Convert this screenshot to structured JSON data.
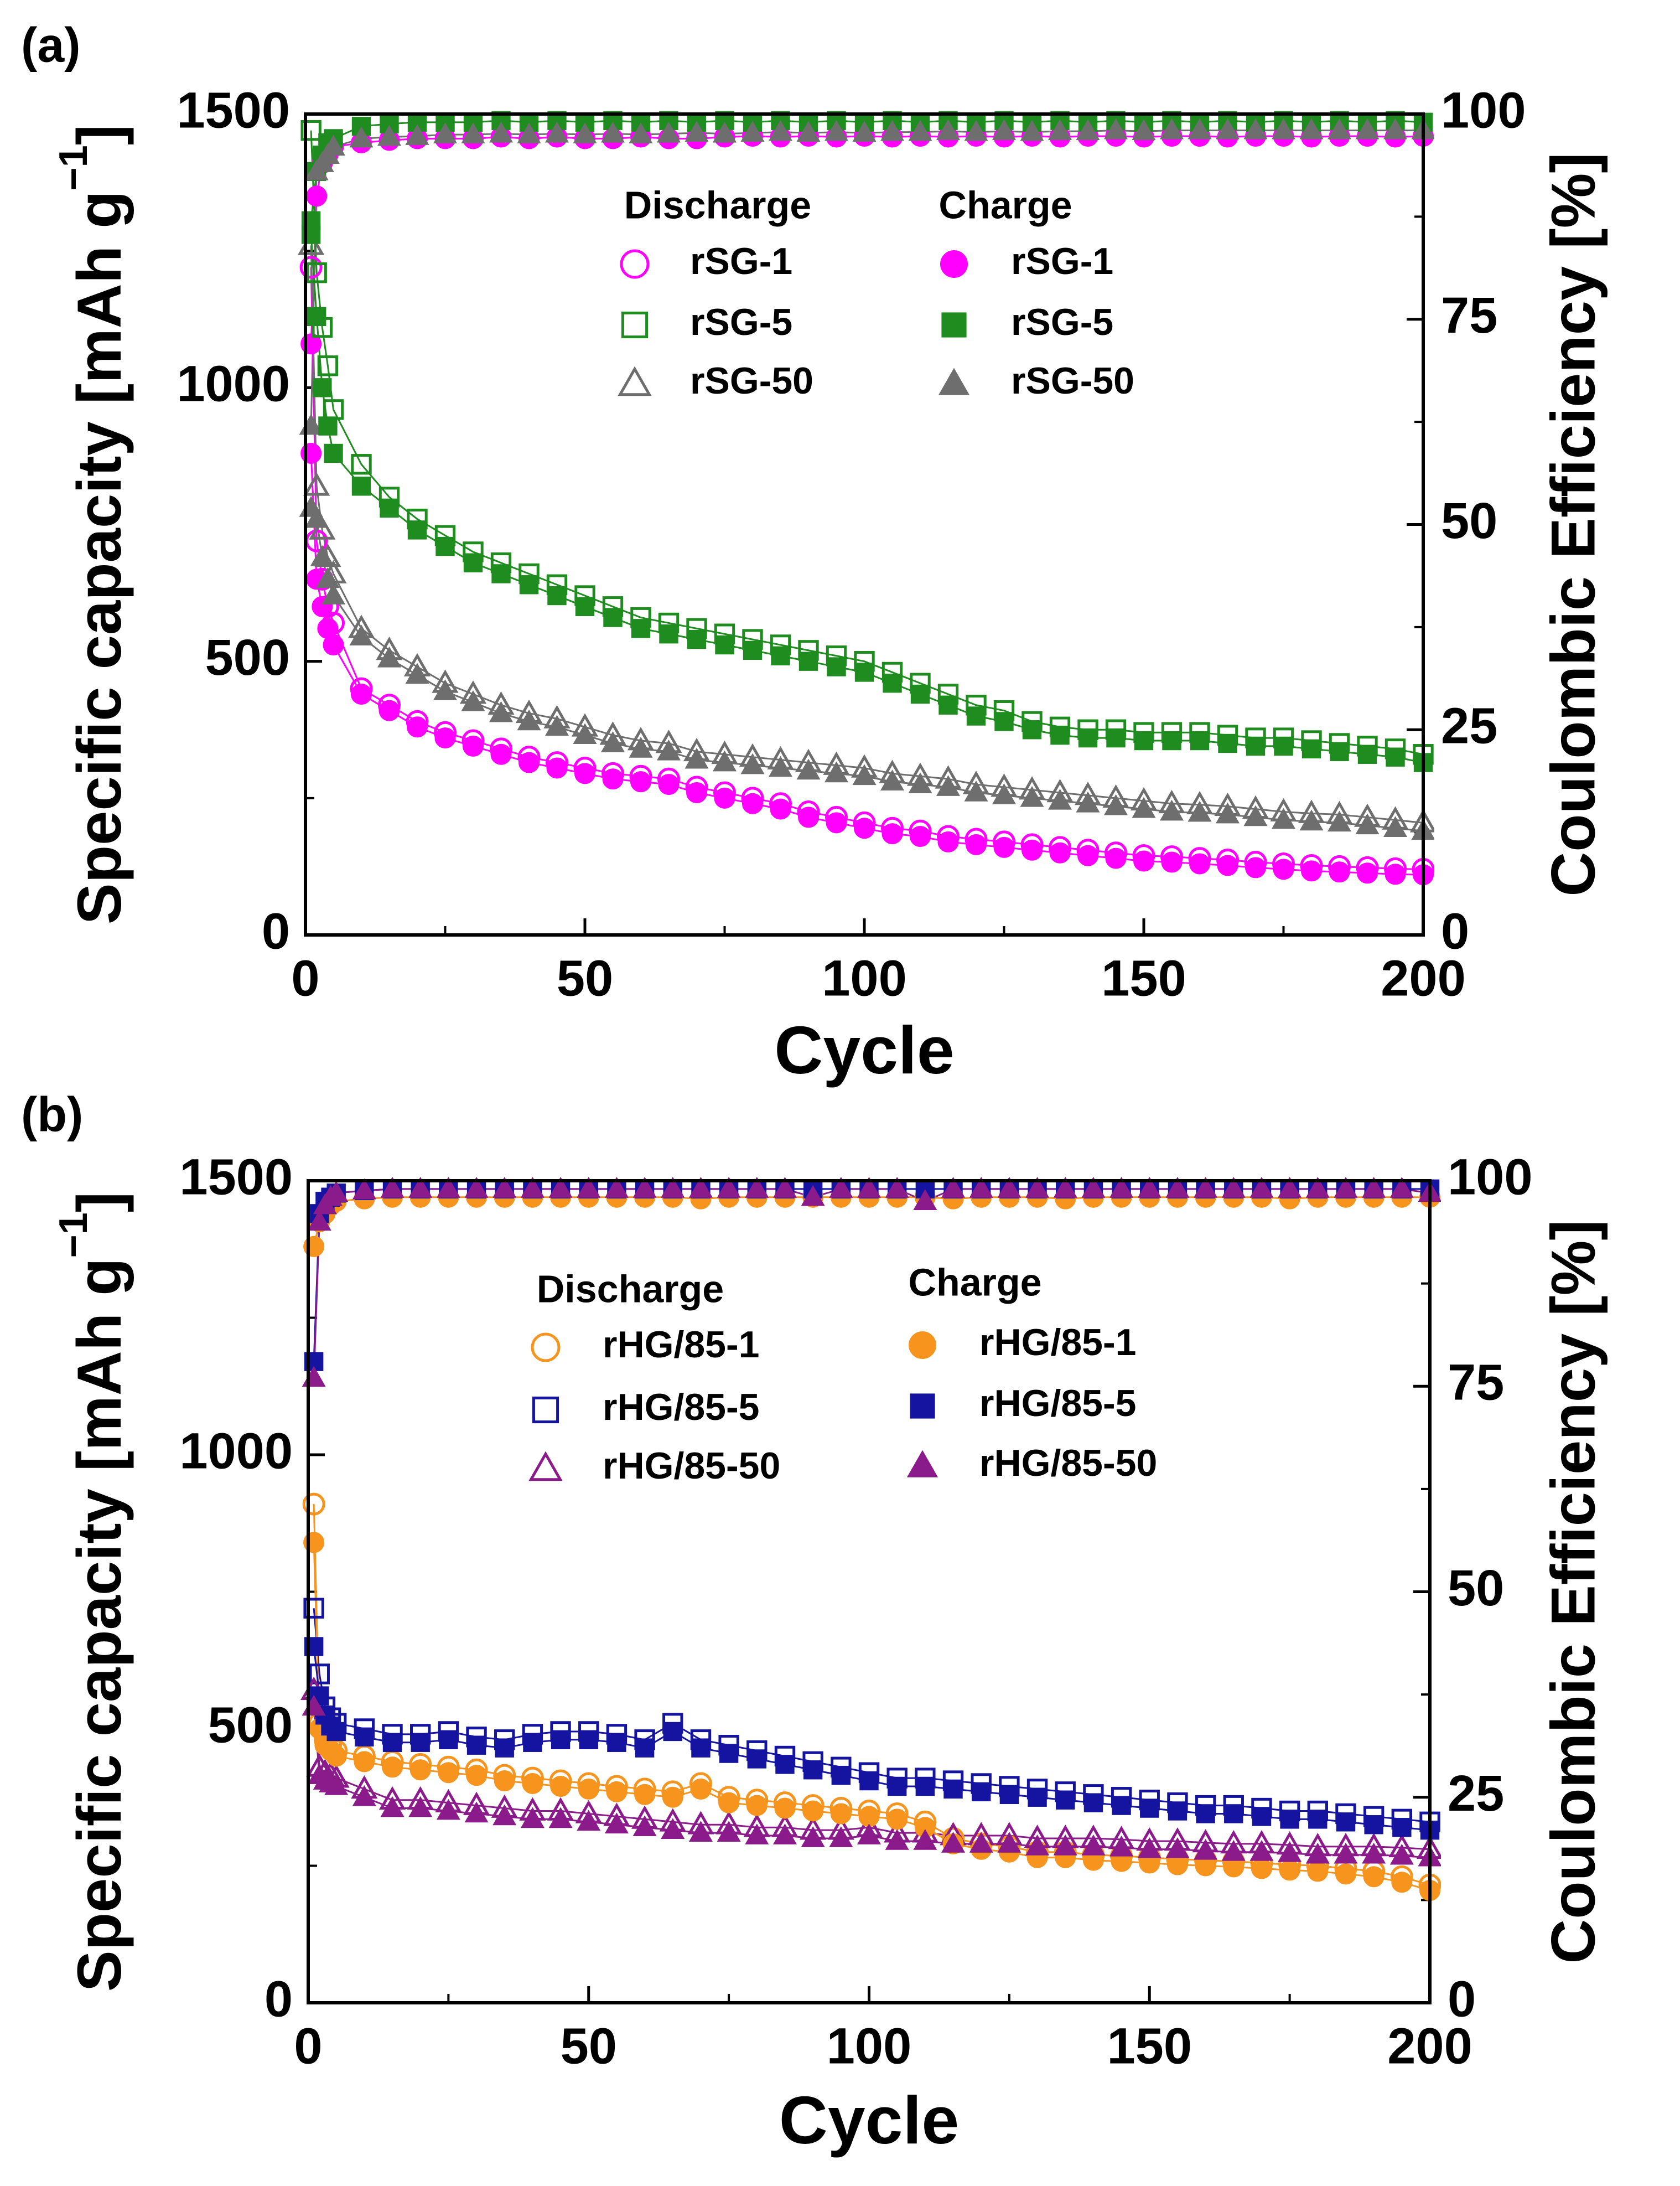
{
  "chart_data": [
    {
      "type": "scatter",
      "panel_label": "(a)",
      "xlabel": "Cycle",
      "ylabel": {
        "text": "Specific capacity [mAh g",
        "superscript": "−1",
        "close": "]"
      },
      "y2label": "Coulombic Efficiency [%]",
      "legend_titles": [
        "Discharge",
        "Charge"
      ],
      "xlim": [
        0,
        200
      ],
      "xticks": [
        0,
        50,
        100,
        150,
        200
      ],
      "xminorticks": [
        25,
        75,
        125,
        175
      ],
      "ylim": [
        0,
        1500
      ],
      "yticks": [
        0,
        500,
        1000,
        1500
      ],
      "yminorticks": [
        250,
        750,
        1250
      ],
      "y2lim": [
        0,
        100
      ],
      "y2ticks": [
        0,
        25,
        50,
        75,
        100
      ],
      "y2minorticks": [
        12.5,
        37.5,
        62.5,
        87.5
      ],
      "x": [
        1,
        2,
        3,
        4,
        5,
        10,
        15,
        20,
        25,
        30,
        35,
        40,
        45,
        50,
        55,
        60,
        65,
        70,
        75,
        80,
        85,
        90,
        95,
        100,
        105,
        110,
        115,
        120,
        125,
        130,
        135,
        140,
        145,
        150,
        155,
        160,
        165,
        170,
        175,
        180,
        185,
        190,
        195,
        200
      ],
      "series": [
        {
          "color": "#ff00ff",
          "marker": "circle",
          "filled": true,
          "axis": "y2",
          "values": [
            72,
            90,
            94,
            95,
            96,
            96.5,
            96.8,
            97,
            97,
            97,
            97.2,
            97,
            97.2,
            97,
            97,
            97.2,
            97,
            97,
            97.2,
            97.3,
            97.2,
            97.3,
            97.2,
            97.3,
            97.2,
            97.3,
            97.2,
            97.3,
            97.2,
            97.3,
            97.2,
            97.3,
            97.3,
            97.2,
            97.3,
            97.3,
            97.2,
            97.3,
            97.3,
            97.2,
            97.3,
            97.3,
            97.2,
            97.3
          ]
        },
        {
          "color": "#1e8c1e",
          "marker": "square",
          "filled": true,
          "axis": "y2",
          "values": [
            87,
            93,
            95,
            96.5,
            97,
            98.5,
            98.8,
            99,
            99,
            99,
            99.2,
            99,
            99.2,
            99,
            99.2,
            99,
            99.2,
            99,
            99.2,
            99,
            99.2,
            99,
            99.2,
            99,
            99.2,
            99,
            99.2,
            99,
            99.2,
            99,
            99.2,
            99,
            99.2,
            99,
            99.2,
            99,
            99.2,
            99,
            99.2,
            99,
            99.2,
            99,
            99.2,
            99
          ]
        },
        {
          "color": "#6e6e6e",
          "marker": "triangle",
          "filled": true,
          "axis": "y2",
          "values": [
            62,
            93,
            94,
            95,
            96,
            97,
            97.2,
            97.3,
            97.5,
            97.5,
            97.6,
            97.5,
            97.6,
            97.5,
            97.6,
            97.5,
            97.6,
            97.7,
            97.6,
            97.7,
            97.8,
            97.7,
            97.8,
            97.7,
            97.8,
            97.8,
            97.9,
            97.8,
            97.9,
            97.8,
            97.9,
            97.9,
            98,
            97.9,
            98,
            98,
            98,
            98,
            98,
            98,
            98,
            98,
            98,
            98
          ]
        },
        {
          "name": "rSG-1",
          "color": "#ff00ff",
          "marker": "circle",
          "filled": false,
          "values": [
            1220,
            720,
            650,
            600,
            570,
            450,
            420,
            390,
            370,
            355,
            340,
            325,
            315,
            305,
            295,
            290,
            285,
            270,
            260,
            250,
            240,
            225,
            215,
            205,
            195,
            190,
            180,
            175,
            170,
            165,
            160,
            155,
            150,
            145,
            143,
            140,
            137,
            133,
            130,
            127,
            125,
            123,
            121,
            120
          ]
        },
        {
          "name": "rSG-5",
          "color": "#1e8c1e",
          "marker": "square",
          "filled": false,
          "values": [
            1470,
            1210,
            1110,
            1040,
            960,
            860,
            800,
            760,
            730,
            700,
            680,
            660,
            640,
            620,
            600,
            580,
            570,
            560,
            550,
            540,
            530,
            520,
            510,
            500,
            480,
            460,
            440,
            420,
            410,
            390,
            380,
            375,
            375,
            370,
            370,
            370,
            365,
            360,
            360,
            355,
            350,
            345,
            340,
            330
          ]
        },
        {
          "name": "rSG-50",
          "color": "#6e6e6e",
          "marker": "triangle",
          "filled": false,
          "values": [
            1260,
            820,
            740,
            690,
            660,
            560,
            520,
            490,
            460,
            440,
            420,
            405,
            395,
            380,
            365,
            355,
            350,
            335,
            330,
            325,
            320,
            315,
            310,
            305,
            295,
            290,
            285,
            275,
            270,
            265,
            260,
            255,
            250,
            245,
            240,
            238,
            235,
            230,
            225,
            222,
            220,
            215,
            210,
            205
          ]
        },
        {
          "name": "rSG-1",
          "color": "#ff00ff",
          "marker": "circle",
          "filled": true,
          "values": [
            880,
            650,
            600,
            560,
            530,
            440,
            410,
            380,
            360,
            345,
            330,
            315,
            305,
            295,
            285,
            280,
            275,
            260,
            250,
            240,
            230,
            215,
            205,
            195,
            185,
            180,
            170,
            165,
            160,
            155,
            150,
            145,
            140,
            135,
            133,
            130,
            127,
            123,
            120,
            117,
            115,
            113,
            111,
            110
          ]
        },
        {
          "name": "rSG-5",
          "color": "#1e8c1e",
          "marker": "square",
          "filled": true,
          "values": [
            1280,
            1130,
            1000,
            930,
            880,
            820,
            780,
            740,
            710,
            680,
            660,
            640,
            620,
            600,
            580,
            560,
            550,
            540,
            530,
            520,
            510,
            500,
            490,
            480,
            460,
            440,
            420,
            400,
            390,
            375,
            365,
            360,
            360,
            355,
            355,
            355,
            350,
            345,
            345,
            340,
            335,
            330,
            325,
            315
          ]
        },
        {
          "name": "rSG-50",
          "color": "#6e6e6e",
          "marker": "triangle",
          "filled": true,
          "values": [
            780,
            760,
            690,
            650,
            620,
            545,
            505,
            475,
            445,
            425,
            405,
            390,
            380,
            365,
            350,
            340,
            335,
            320,
            315,
            310,
            305,
            300,
            295,
            290,
            280,
            275,
            270,
            260,
            255,
            250,
            245,
            240,
            235,
            230,
            225,
            223,
            220,
            215,
            210,
            207,
            205,
            200,
            195,
            190
          ]
        }
      ]
    },
    {
      "type": "scatter",
      "panel_label": "(b)",
      "xlabel": "Cycle",
      "ylabel": {
        "text": "Specific capacity [mAh g",
        "superscript": "−1",
        "close": "]"
      },
      "y2label": "Coulombic Efficiency [%]",
      "legend_titles": [
        "Discharge",
        "Charge"
      ],
      "xlim": [
        0,
        200
      ],
      "xticks": [
        0,
        50,
        100,
        150,
        200
      ],
      "xminorticks": [
        25,
        75,
        125,
        175
      ],
      "ylim": [
        0,
        1500
      ],
      "yticks": [
        0,
        500,
        1000,
        1500
      ],
      "yminorticks": [
        250,
        750,
        1250
      ],
      "y2lim": [
        0,
        100
      ],
      "y2ticks": [
        0,
        25,
        50,
        75,
        100
      ],
      "y2minorticks": [
        12.5,
        37.5,
        62.5,
        87.5
      ],
      "x": [
        1,
        2,
        3,
        4,
        5,
        10,
        15,
        20,
        25,
        30,
        35,
        40,
        45,
        50,
        55,
        60,
        65,
        70,
        75,
        80,
        85,
        90,
        95,
        100,
        105,
        110,
        115,
        120,
        125,
        130,
        135,
        140,
        145,
        150,
        155,
        160,
        165,
        170,
        175,
        180,
        185,
        190,
        195,
        200
      ],
      "series": [
        {
          "color": "#f7941d",
          "marker": "circle",
          "filled": true,
          "axis": "y2",
          "values": [
            92,
            95,
            96,
            97,
            97.5,
            97.8,
            98,
            98,
            98,
            98,
            98,
            98,
            98,
            98,
            98,
            98,
            98,
            97.8,
            98,
            98,
            98,
            98,
            98,
            98,
            98,
            98,
            97.8,
            98,
            98,
            98,
            97.8,
            98,
            98,
            98,
            98,
            98,
            98,
            98,
            97.8,
            98,
            98,
            98,
            98,
            98
          ]
        },
        {
          "color": "#1414a0",
          "marker": "square",
          "filled": true,
          "axis": "y2",
          "values": [
            78,
            96,
            97.5,
            98,
            98.5,
            98.8,
            99,
            99,
            99,
            99,
            99,
            99,
            99,
            99,
            99,
            99,
            99,
            99,
            99,
            99,
            99,
            99,
            99,
            99,
            99,
            99,
            99,
            99,
            99,
            99,
            99,
            99,
            99,
            99,
            99,
            99,
            99,
            99,
            99,
            99,
            99,
            99,
            99,
            99
          ]
        },
        {
          "color": "#8b1a8b",
          "marker": "triangle",
          "filled": true,
          "axis": "y2",
          "values": [
            76,
            95,
            97,
            98,
            98.5,
            98.8,
            99,
            99,
            99,
            99,
            99,
            99,
            99,
            99,
            99,
            99,
            99,
            99,
            99,
            99,
            99,
            98,
            99,
            99,
            99,
            97.5,
            99,
            99,
            99,
            99,
            99,
            99,
            99,
            99,
            99,
            99,
            99,
            99,
            99,
            99,
            99,
            99,
            99,
            98.5
          ]
        },
        {
          "name": "rHG/85-1",
          "color": "#f7941d",
          "marker": "circle",
          "filled": false,
          "values": [
            910,
            510,
            480,
            470,
            460,
            450,
            440,
            435,
            430,
            425,
            415,
            410,
            405,
            400,
            395,
            390,
            385,
            400,
            375,
            370,
            365,
            360,
            355,
            350,
            345,
            330,
            300,
            290,
            285,
            275,
            275,
            270,
            268,
            265,
            262,
            260,
            258,
            255,
            252,
            250,
            245,
            240,
            230,
            215
          ]
        },
        {
          "name": "rHG/85-5",
          "color": "#1414a0",
          "marker": "square",
          "filled": false,
          "values": [
            720,
            600,
            540,
            520,
            510,
            500,
            490,
            490,
            495,
            485,
            480,
            490,
            495,
            495,
            490,
            480,
            510,
            480,
            470,
            460,
            450,
            440,
            430,
            420,
            410,
            410,
            405,
            400,
            395,
            390,
            385,
            380,
            375,
            370,
            365,
            360,
            360,
            355,
            350,
            350,
            345,
            340,
            335,
            330
          ]
        },
        {
          "name": "rHG/85-50",
          "color": "#8b1a8b",
          "marker": "triangle",
          "filled": false,
          "values": [
            570,
            430,
            420,
            415,
            410,
            390,
            370,
            370,
            365,
            360,
            355,
            350,
            350,
            345,
            340,
            335,
            330,
            325,
            325,
            320,
            320,
            315,
            315,
            320,
            310,
            310,
            305,
            305,
            305,
            300,
            300,
            300,
            298,
            295,
            295,
            292,
            290,
            290,
            288,
            285,
            285,
            285,
            283,
            280
          ]
        },
        {
          "name": "rHG/85-1",
          "color": "#f7941d",
          "marker": "circle",
          "filled": true,
          "values": [
            840,
            500,
            470,
            460,
            450,
            440,
            430,
            425,
            420,
            415,
            405,
            400,
            395,
            390,
            385,
            380,
            375,
            390,
            365,
            360,
            355,
            350,
            345,
            340,
            335,
            320,
            290,
            280,
            275,
            265,
            265,
            260,
            258,
            255,
            252,
            250,
            248,
            245,
            242,
            240,
            235,
            230,
            220,
            205
          ]
        },
        {
          "name": "rHG/85-5",
          "color": "#1414a0",
          "marker": "square",
          "filled": true,
          "values": [
            650,
            560,
            525,
            505,
            495,
            485,
            475,
            475,
            480,
            470,
            465,
            475,
            480,
            480,
            475,
            465,
            495,
            465,
            455,
            445,
            435,
            425,
            415,
            405,
            395,
            395,
            390,
            385,
            380,
            375,
            370,
            365,
            360,
            355,
            350,
            345,
            345,
            340,
            335,
            335,
            330,
            325,
            320,
            315
          ]
        },
        {
          "name": "rHG/85-50",
          "color": "#8b1a8b",
          "marker": "triangle",
          "filled": true,
          "values": [
            540,
            415,
            405,
            400,
            395,
            375,
            355,
            355,
            350,
            345,
            340,
            335,
            335,
            330,
            325,
            320,
            315,
            310,
            310,
            305,
            305,
            300,
            300,
            305,
            295,
            295,
            290,
            290,
            290,
            285,
            285,
            285,
            283,
            280,
            280,
            277,
            275,
            275,
            273,
            270,
            270,
            270,
            268,
            265
          ]
        }
      ]
    }
  ]
}
